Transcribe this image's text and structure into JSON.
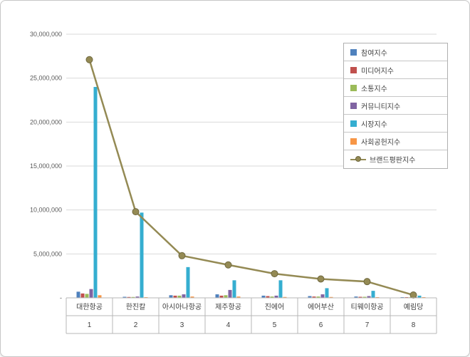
{
  "chart_data": {
    "type": "bar",
    "title": "",
    "categories": [
      "대한항공",
      "한진칼",
      "아시아나항공",
      "제주항공",
      "진에어",
      "에어부산",
      "티웨이항공",
      "예림당"
    ],
    "category_numbers": [
      "1",
      "2",
      "3",
      "4",
      "5",
      "6",
      "7",
      "8"
    ],
    "series": [
      {
        "name": "참여지수",
        "type": "bar",
        "color": "#4f81bd",
        "values": [
          700000,
          120000,
          300000,
          400000,
          250000,
          200000,
          150000,
          80000
        ]
      },
      {
        "name": "미디어지수",
        "type": "bar",
        "color": "#c0504d",
        "values": [
          500000,
          100000,
          250000,
          250000,
          200000,
          150000,
          120000,
          60000
        ]
      },
      {
        "name": "소통지수",
        "type": "bar",
        "color": "#9bbb59",
        "values": [
          450000,
          100000,
          250000,
          300000,
          150000,
          150000,
          120000,
          60000
        ]
      },
      {
        "name": "커뮤니티지수",
        "type": "bar",
        "color": "#8064a2",
        "values": [
          1000000,
          150000,
          400000,
          900000,
          250000,
          400000,
          200000,
          80000
        ]
      },
      {
        "name": "시장지수",
        "type": "bar",
        "color": "#35aed0",
        "values": [
          24000000,
          9700000,
          3500000,
          2000000,
          2000000,
          1100000,
          800000,
          250000
        ]
      },
      {
        "name": "사회공헌지수",
        "type": "bar",
        "color": "#f79646",
        "values": [
          300000,
          80000,
          150000,
          150000,
          100000,
          100000,
          80000,
          40000
        ]
      },
      {
        "name": "브랜드평판지수",
        "type": "line",
        "color": "#948a54",
        "marker_stroke": "#6f683f",
        "values": [
          27100000,
          9800000,
          4800000,
          3750000,
          2750000,
          2150000,
          1850000,
          320000
        ]
      }
    ],
    "y_axis": {
      "min": 0,
      "max": 30000000,
      "step": 5000000,
      "tick_labels": [
        "-",
        "5,000,000",
        "10,000,000",
        "15,000,000",
        "20,000,000",
        "25,000,000",
        "30,000,000"
      ]
    },
    "legend_position": "top-right",
    "grid": true,
    "colors": {
      "gridline": "#d9d9d9",
      "axis_line": "#b7b7b7",
      "tick_text": "#595959",
      "category_text": "#404040"
    }
  }
}
